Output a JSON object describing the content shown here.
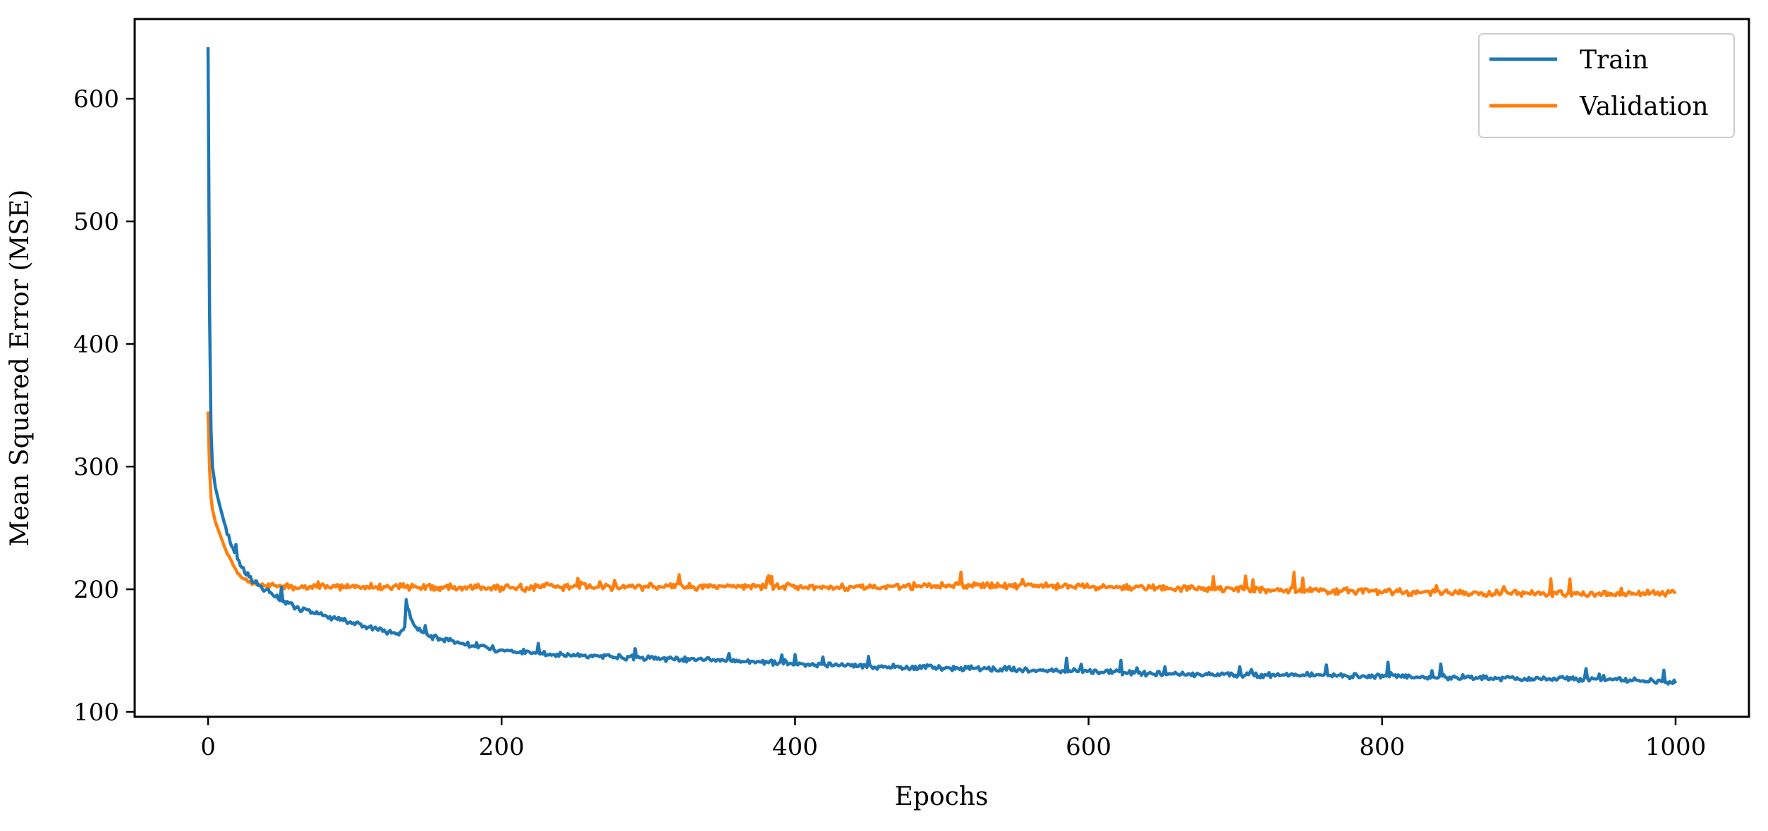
{
  "chart_data": {
    "type": "line",
    "title": "",
    "xlabel": "Epochs",
    "ylabel": "Mean Squared Error (MSE)",
    "xlim": [
      -50,
      1050
    ],
    "ylim": [
      96,
      665
    ],
    "xticks": [
      0,
      200,
      400,
      600,
      800,
      1000
    ],
    "yticks": [
      100,
      200,
      300,
      400,
      500,
      600
    ],
    "grid": false,
    "legend_position": "top-right",
    "series": [
      {
        "name": "Train",
        "color": "#1f77b4",
        "anchors": [
          [
            0,
            642
          ],
          [
            1,
            430
          ],
          [
            2,
            330
          ],
          [
            3,
            300
          ],
          [
            5,
            283
          ],
          [
            8,
            268
          ],
          [
            12,
            250
          ],
          [
            16,
            235
          ],
          [
            20,
            225
          ],
          [
            25,
            215
          ],
          [
            30,
            207
          ],
          [
            40,
            199
          ],
          [
            50,
            192
          ],
          [
            60,
            185
          ],
          [
            75,
            180
          ],
          [
            90,
            175
          ],
          [
            105,
            171
          ],
          [
            120,
            166
          ],
          [
            130,
            163
          ],
          [
            134,
            168
          ],
          [
            135,
            190
          ],
          [
            137,
            182
          ],
          [
            140,
            170
          ],
          [
            150,
            162
          ],
          [
            170,
            157
          ],
          [
            200,
            150
          ],
          [
            250,
            146
          ],
          [
            300,
            144
          ],
          [
            350,
            142
          ],
          [
            400,
            139
          ],
          [
            450,
            137
          ],
          [
            500,
            136
          ],
          [
            550,
            135
          ],
          [
            600,
            133
          ],
          [
            650,
            131
          ],
          [
            700,
            130
          ],
          [
            750,
            130
          ],
          [
            800,
            129
          ],
          [
            850,
            128
          ],
          [
            900,
            127
          ],
          [
            950,
            127
          ],
          [
            1000,
            124
          ]
        ],
        "noise": 2.6
      },
      {
        "name": "Validation",
        "color": "#ff7f0e",
        "anchors": [
          [
            0,
            345
          ],
          [
            1,
            300
          ],
          [
            2,
            275
          ],
          [
            3,
            265
          ],
          [
            5,
            255
          ],
          [
            8,
            245
          ],
          [
            12,
            232
          ],
          [
            16,
            222
          ],
          [
            20,
            214
          ],
          [
            25,
            208
          ],
          [
            30,
            205
          ],
          [
            40,
            203
          ],
          [
            50,
            202
          ],
          [
            100,
            202
          ],
          [
            150,
            202
          ],
          [
            200,
            201
          ],
          [
            250,
            202
          ],
          [
            300,
            202
          ],
          [
            350,
            202
          ],
          [
            400,
            202
          ],
          [
            450,
            202
          ],
          [
            500,
            203
          ],
          [
            550,
            203
          ],
          [
            600,
            202
          ],
          [
            650,
            201
          ],
          [
            700,
            200
          ],
          [
            750,
            199
          ],
          [
            800,
            198
          ],
          [
            850,
            197
          ],
          [
            900,
            197
          ],
          [
            950,
            196
          ],
          [
            1000,
            197
          ]
        ],
        "noise": 3.2
      }
    ]
  }
}
